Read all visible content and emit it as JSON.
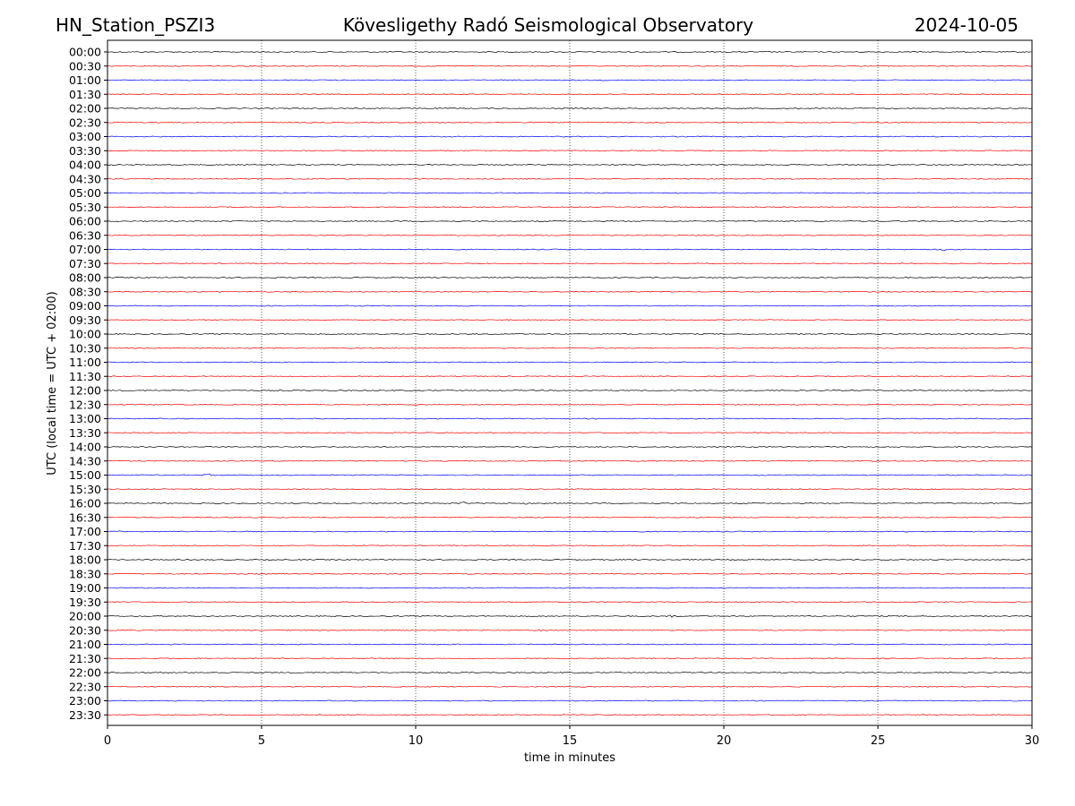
{
  "header": {
    "station": "HN_Station_PSZI3",
    "observatory": "Kövesligethy Radó Seismological Observatory",
    "date": "2024-10-05"
  },
  "chart_data": {
    "type": "line",
    "title": "Kövesligethy Radó Seismological Observatory",
    "xlabel": "time in minutes",
    "ylabel": "UTC (local time = UTC + 02:00)",
    "xlim": [
      0,
      30
    ],
    "x_ticks": [
      0,
      5,
      10,
      15,
      20,
      25,
      30
    ],
    "grid": "vertical dotted at x ticks",
    "trace_colors": [
      "#000000",
      "#ff0000",
      "#0000ff",
      "#ff0000"
    ],
    "rows": [
      "00:00",
      "00:30",
      "01:00",
      "01:30",
      "02:00",
      "02:30",
      "03:00",
      "03:30",
      "04:00",
      "04:30",
      "05:00",
      "05:30",
      "06:00",
      "06:30",
      "07:00",
      "07:30",
      "08:00",
      "08:30",
      "09:00",
      "09:30",
      "10:00",
      "10:30",
      "11:00",
      "11:30",
      "12:00",
      "12:30",
      "13:00",
      "13:30",
      "14:00",
      "14:30",
      "15:00",
      "15:30",
      "16:00",
      "16:30",
      "17:00",
      "17:30",
      "18:00",
      "18:30",
      "19:00",
      "19:30",
      "20:00",
      "20:30",
      "21:00",
      "21:30",
      "22:00",
      "22:30",
      "23:00",
      "23:30"
    ],
    "events": [
      {
        "row": "02:00",
        "minute": 9.6
      },
      {
        "row": "04:00",
        "minute": 27.2
      },
      {
        "row": "07:00",
        "minute": 27.1
      },
      {
        "row": "15:00",
        "minute": 3.3
      },
      {
        "row": "16:00",
        "minute": 11.6
      },
      {
        "row": "16:00",
        "minute": 13.5
      },
      {
        "row": "16:30",
        "minute": 21.3
      },
      {
        "row": "20:00",
        "minute": 18.3
      },
      {
        "row": "20:30",
        "minute": 14.2
      }
    ]
  }
}
